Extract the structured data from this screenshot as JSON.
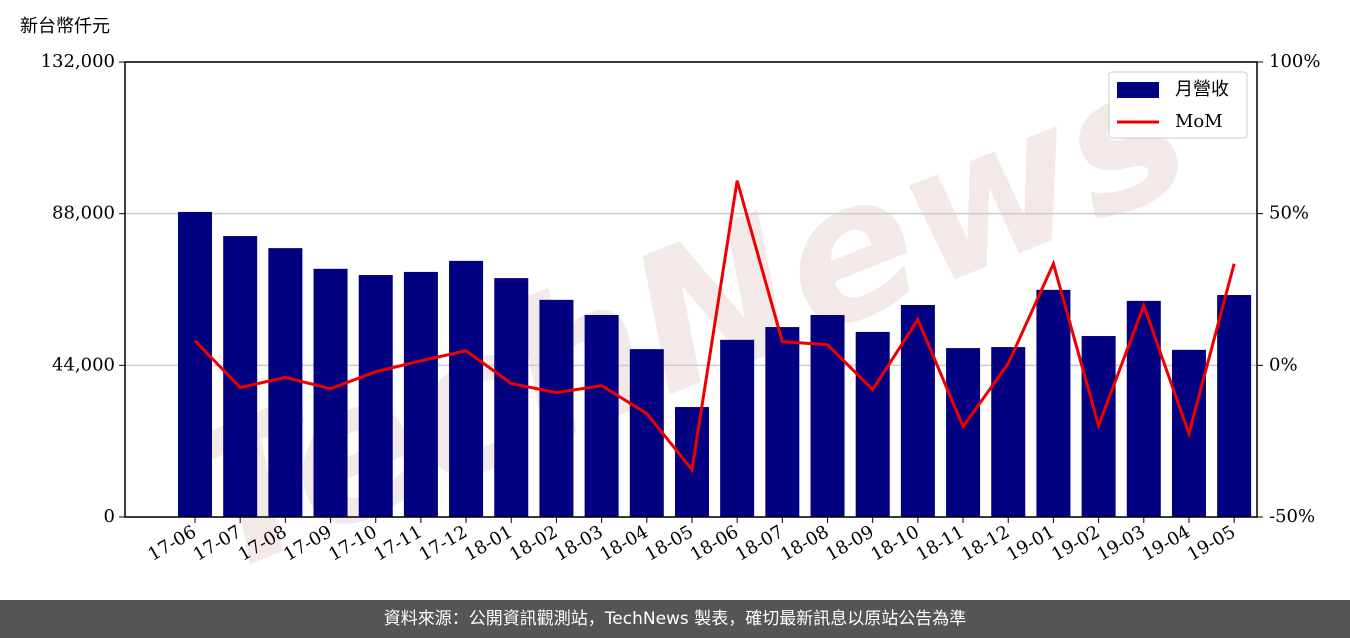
{
  "chart_data": {
    "type": "bar",
    "y_label": "新台幣仟元",
    "watermark": "TechNews",
    "categories": [
      "17-06",
      "17-07",
      "17-08",
      "17-09",
      "17-10",
      "17-11",
      "17-12",
      "18-01",
      "18-02",
      "18-03",
      "18-04",
      "18-05",
      "18-06",
      "18-07",
      "18-08",
      "18-09",
      "18-10",
      "18-11",
      "18-12",
      "19-01",
      "19-02",
      "19-03",
      "19-04",
      "19-05"
    ],
    "series": [
      {
        "name": "月營收",
        "type": "bar",
        "color": "#000080",
        "values": [
          88500,
          81500,
          78000,
          72000,
          70200,
          71100,
          74300,
          69300,
          63000,
          58600,
          48700,
          31900,
          51400,
          55100,
          58600,
          53700,
          61500,
          49000,
          49300,
          65900,
          52500,
          62700,
          48500,
          64400
        ]
      },
      {
        "name": "MoM",
        "type": "line",
        "axis": "y2",
        "color": "#ee0000",
        "values": [
          8.1,
          -7.3,
          -4.0,
          -7.7,
          -2.1,
          1.5,
          4.8,
          -6.0,
          -9.0,
          -6.7,
          -15.9,
          -34.4,
          60.9,
          7.8,
          6.8,
          -8.0,
          15.1,
          -20.2,
          0.6,
          33.5,
          -19.9,
          19.7,
          -22.5,
          33.5
        ]
      }
    ],
    "ylim": [
      0,
      132000
    ],
    "yticks": [
      0,
      {
        "value": 44000,
        "label": "44,000"
      },
      {
        "value": 88000,
        "label": "88,000"
      },
      {
        "value": 132000,
        "label": "132,000"
      }
    ],
    "y2lim": [
      -50,
      100
    ],
    "y2ticks": [
      {
        "value": -50,
        "label": "-50%"
      },
      {
        "value": 0,
        "label": "0%"
      },
      {
        "value": 50,
        "label": "50%"
      },
      {
        "value": 100,
        "label": "100%"
      }
    ],
    "grid": true,
    "legend": "upper right",
    "source": "資料來源：公開資訊觀測站，TechNews 製表，確切最新訊息以原站公告為準"
  }
}
